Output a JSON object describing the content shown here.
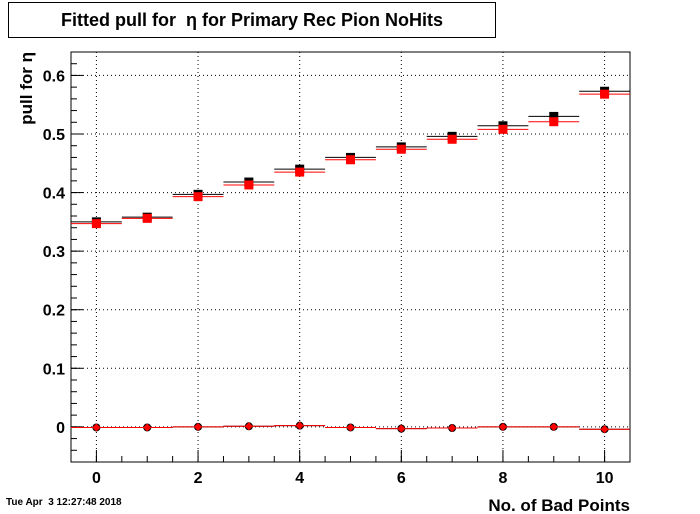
{
  "chart_data": {
    "type": "scatter",
    "title": "Fitted pull for  η for Primary Rec Pion NoHits",
    "xlabel": "No. of Bad Points",
    "ylabel": "pull for  η",
    "xlim": [
      -0.5,
      10.5
    ],
    "ylim": [
      -0.06,
      0.64
    ],
    "x_ticks": [
      "0",
      "2",
      "4",
      "6",
      "8",
      "10"
    ],
    "y_ticks": [
      "0",
      "0.1",
      "0.2",
      "0.3",
      "0.4",
      "0.5",
      "0.6"
    ],
    "grid": true,
    "x": [
      0,
      1,
      2,
      3,
      4,
      5,
      6,
      7,
      8,
      9,
      10
    ],
    "series": [
      {
        "marker": "square",
        "color": "#000000",
        "values": [
          0.35,
          0.358,
          0.397,
          0.418,
          0.44,
          0.46,
          0.478,
          0.496,
          0.514,
          0.53,
          0.573
        ]
      },
      {
        "marker": "square",
        "color": "#ff0000",
        "values": [
          0.347,
          0.356,
          0.393,
          0.413,
          0.435,
          0.456,
          0.474,
          0.491,
          0.508,
          0.521,
          0.568
        ]
      },
      {
        "marker": "circle",
        "color": "#000000",
        "values": [
          -0.001,
          -0.001,
          0.0,
          0.001,
          0.002,
          -0.001,
          -0.003,
          -0.002,
          0.0,
          0.0,
          -0.004
        ]
      },
      {
        "marker": "diamond",
        "color": "#ff0000",
        "values": [
          -0.001,
          -0.001,
          0.0,
          0.001,
          0.002,
          -0.001,
          -0.003,
          -0.002,
          0.0,
          0.0,
          -0.004
        ]
      }
    ]
  },
  "timestamp": "Tue Apr  3 12:27:48 2018"
}
